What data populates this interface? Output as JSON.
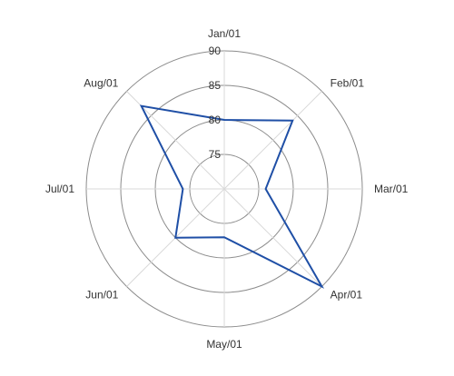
{
  "chart_data": {
    "type": "radar",
    "categories": [
      "Jan/01",
      "Feb/01",
      "Mar/01",
      "Apr/01",
      "May/01",
      "Jun/01",
      "Jul/01",
      "Aug/01"
    ],
    "series": [
      {
        "values": [
          80,
          84,
          76,
          90,
          77,
          80,
          76,
          87
        ]
      }
    ],
    "rlim": [
      70,
      90
    ],
    "ticks": [
      75,
      80,
      85,
      90
    ],
    "grid": true,
    "colors": {
      "series": "#1f4fa6",
      "grid_circle": "#8c8c8c",
      "spoke": "#d9d9d9"
    }
  }
}
